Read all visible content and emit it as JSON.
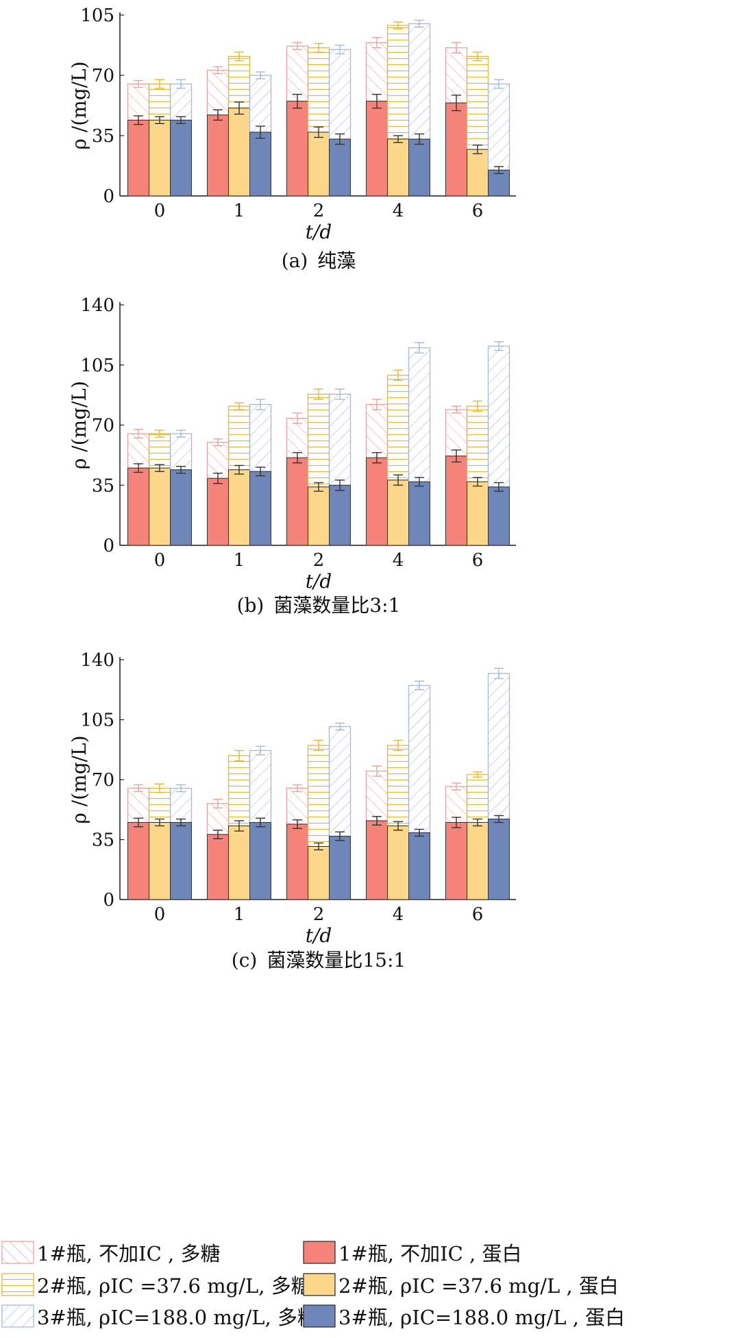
{
  "chart_data": [
    {
      "type": "bar",
      "panel_label": "(a)",
      "caption": "纯藻",
      "xlabel": "t/d",
      "ylabel": "ρ /(mg/L)",
      "categories": [
        "0",
        "1",
        "2",
        "4",
        "6"
      ],
      "ylim": [
        0,
        105
      ],
      "yticks": [
        0,
        35,
        70,
        105
      ],
      "series": [
        {
          "key": "s1",
          "name": "1#瓶, 不加IC , 多糖",
          "total": [
            65,
            73,
            87,
            89,
            86
          ],
          "err_total": [
            2,
            2,
            2,
            3,
            3
          ],
          "protein": [
            44,
            47,
            55,
            55,
            54
          ],
          "err_protein": [
            2.5,
            3,
            4,
            4,
            4.5
          ]
        },
        {
          "key": "s2",
          "name": "2#瓶, ρIC =37.6 mg/L, 多糖",
          "total": [
            65,
            81,
            86,
            99,
            81
          ],
          "err_total": [
            2.5,
            2.5,
            2.5,
            2,
            2.5
          ],
          "protein": [
            44,
            51,
            37,
            33,
            27
          ],
          "err_protein": [
            2,
            3.5,
            3,
            2,
            2.5
          ]
        },
        {
          "key": "s3",
          "name": "3#瓶, ρIC=188.0 mg/L, 多糖",
          "total": [
            65,
            70,
            85,
            100,
            65
          ],
          "err_total": [
            2.5,
            2,
            2.5,
            2,
            2.5
          ],
          "protein": [
            44,
            37,
            33,
            33,
            15
          ],
          "err_protein": [
            2,
            3.5,
            3,
            3,
            2
          ]
        }
      ]
    },
    {
      "type": "bar",
      "panel_label": "(b)",
      "caption": "菌藻数量比3:1",
      "xlabel": "t/d",
      "ylabel": "ρ /(mg/L)",
      "categories": [
        "0",
        "1",
        "2",
        "4",
        "6"
      ],
      "ylim": [
        0,
        140
      ],
      "yticks": [
        0,
        35,
        70,
        105,
        140
      ],
      "series": [
        {
          "key": "s1",
          "name": "1#瓶, 不加IC , 多糖",
          "total": [
            65,
            60,
            74,
            82,
            79
          ],
          "err_total": [
            2.5,
            2,
            3,
            3,
            2
          ],
          "protein": [
            45,
            39,
            51,
            51,
            52
          ],
          "err_protein": [
            2.5,
            3,
            3,
            3,
            3.5
          ]
        },
        {
          "key": "s2",
          "name": "2#瓶, ρIC =37.6 mg/L, 多糖",
          "total": [
            65,
            81,
            88,
            99,
            81
          ],
          "err_total": [
            2,
            2,
            3,
            3,
            3
          ],
          "protein": [
            45,
            44,
            34,
            38,
            37
          ],
          "err_protein": [
            2,
            2.5,
            2.5,
            3,
            2.5
          ]
        },
        {
          "key": "s3",
          "name": "3#瓶, ρIC=188.0 mg/L, 多糖",
          "total": [
            65,
            82,
            88,
            115,
            116
          ],
          "err_total": [
            2,
            3,
            3,
            3,
            2.5
          ],
          "protein": [
            44,
            43,
            35,
            37,
            34
          ],
          "err_protein": [
            2,
            2.5,
            3,
            2.5,
            2.5
          ]
        }
      ]
    },
    {
      "type": "bar",
      "panel_label": "(c)",
      "caption": "菌藻数量比15:1",
      "xlabel": "t/d",
      "ylabel": "ρ /(mg/L)",
      "categories": [
        "0",
        "1",
        "2",
        "4",
        "6"
      ],
      "ylim": [
        0,
        140
      ],
      "yticks": [
        0,
        35,
        70,
        105,
        140
      ],
      "series": [
        {
          "key": "s1",
          "name": "1#瓶, 不加IC , 多糖",
          "total": [
            65,
            56,
            65,
            75,
            66
          ],
          "err_total": [
            2,
            2.5,
            2,
            3,
            2
          ],
          "protein": [
            45,
            38,
            44,
            46,
            45
          ],
          "err_protein": [
            2.5,
            2.5,
            2.5,
            2.5,
            3
          ]
        },
        {
          "key": "s2",
          "name": "2#瓶, ρIC =37.6 mg/L, 多糖",
          "total": [
            65,
            84,
            90,
            90,
            73
          ],
          "err_total": [
            2.5,
            3,
            3,
            3,
            1.5
          ],
          "protein": [
            45,
            43,
            31,
            43,
            45
          ],
          "err_protein": [
            2,
            3,
            2,
            2.5,
            2
          ]
        },
        {
          "key": "s3",
          "name": "3#瓶, ρIC=188.0 mg/L, 多糖",
          "total": [
            65,
            87,
            101,
            125,
            132
          ],
          "err_total": [
            2,
            2.5,
            2,
            2.5,
            3
          ],
          "protein": [
            45,
            45,
            37,
            39,
            47
          ],
          "err_protein": [
            2,
            2.5,
            2.5,
            2,
            2
          ]
        }
      ]
    }
  ],
  "legend": [
    {
      "series": "s1",
      "kind": "polysaccharide",
      "label": "1#瓶, 不加IC , 多糖"
    },
    {
      "series": "s1",
      "kind": "protein",
      "label": "1#瓶, 不加IC , 蛋白"
    },
    {
      "series": "s2",
      "kind": "polysaccharide",
      "label": "2#瓶, ρIC =37.6 mg/L, 多糖"
    },
    {
      "series": "s2",
      "kind": "protein",
      "label": "2#瓶, ρIC =37.6 mg/L , 蛋白"
    },
    {
      "series": "s3",
      "kind": "polysaccharide",
      "label": "3#瓶, ρIC=188.0 mg/L, 多糖"
    },
    {
      "series": "s3",
      "kind": "protein",
      "label": "3#瓶, ρIC=188.0 mg/L , 蛋白"
    }
  ],
  "colors": {
    "s1_fill": "#f4837a",
    "s1_line": "#e8a0a0",
    "s2_fill": "#fdd78a",
    "s2_line": "#e2b638",
    "s3_fill": "#6f86b8",
    "s3_line": "#a8b8d4",
    "axis": "#1a1a1a",
    "error_bar": "#333333"
  }
}
